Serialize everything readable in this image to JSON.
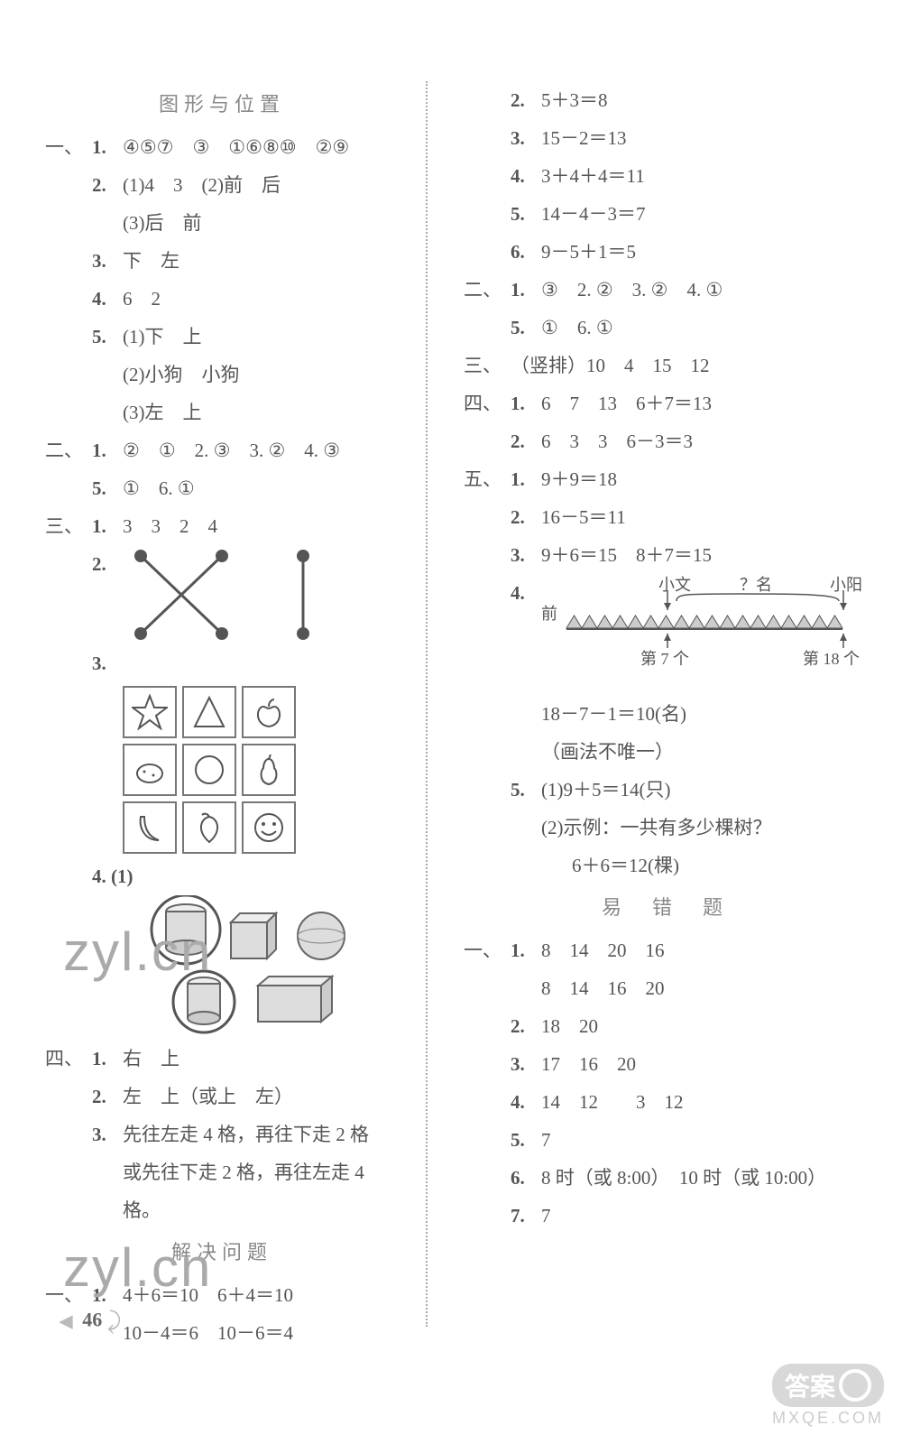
{
  "page_number": "46",
  "watermark_text": "zyl.cn",
  "badge": {
    "top": "答案",
    "bottom": "MXQE.COM"
  },
  "left": {
    "title1": "图形与位置",
    "s1": {
      "i1": "④⑤⑦　③　①⑥⑧⑩　②⑨",
      "i2_a": "(1)4　3　(2)前　后",
      "i2_b": "(3)后　前",
      "i3": "下　左",
      "i4": "6　2",
      "i5_a": "(1)下　上",
      "i5_b": "(2)小狗　小狗",
      "i5_c": "(3)左　上"
    },
    "s2": {
      "line": "②　①　2. ③　3. ②　4. ③",
      "cont": "①　6. ①"
    },
    "s3": {
      "i1": "3　3　2　4",
      "i2_label": "2.",
      "i3_label": "3.",
      "i4_label": "4. (1)"
    },
    "s4": {
      "i1": "右　上",
      "i2": "左　上（或上　左）",
      "i3a": "先往左走 4 格，再往下走 2 格",
      "i3b": "或先往下走 2 格，再往左走 4 格。"
    },
    "title2": "解决问题",
    "s5": {
      "i1a": "4＋6＝10　6＋4＝10",
      "i1b": "10－4＝6　10－6＝4"
    }
  },
  "right": {
    "top": {
      "i2": "5＋3＝8",
      "i3": "15－2＝13",
      "i4": "3＋4＋4＝11",
      "i5": "14－4－3＝7",
      "i6": "9－5＋1＝5"
    },
    "s2": {
      "line": "③　2. ②　3. ②　4. ①",
      "cont": "①　6. ①"
    },
    "s3": "（竖排）10　4　15　12",
    "s4": {
      "i1": "6　7　13　6＋7＝13",
      "i2": "6　3　3　6－3＝3"
    },
    "s5": {
      "i1": "9＋9＝18",
      "i2": "16－5＝11",
      "i3": "9＋6＝15　8＋7＝15",
      "i4_label": "4.",
      "queue": {
        "front": "前",
        "xiaowen": "小文",
        "qm": "？名",
        "xiaoyang": "小阳",
        "pos7": "第 7 个",
        "pos18": "第 18 个",
        "triangles_count": 18
      },
      "i4a": "18－7－1＝10(名)",
      "i4b": "（画法不唯一）",
      "i5a": "(1)9＋5＝14(只)",
      "i5b": "(2)示例：一共有多少棵树？",
      "i5c": "6＋6＝12(棵)"
    },
    "title_err": "易　错　题",
    "err": {
      "i1a": "8　14　20　16",
      "i1b": "8　14　16　20",
      "i2": "18　20",
      "i3": "17　16　20",
      "i4": "14　12　　3　12",
      "i5": "7",
      "i6": "8 时（或 8:00）　10 时（或 10:00）",
      "i7": "7"
    }
  },
  "colors": {
    "text": "#555555",
    "light": "#888888",
    "divider": "#aaaaaa",
    "badge_bg": "#d8d8d8",
    "badge_fg": "#ffffff"
  }
}
